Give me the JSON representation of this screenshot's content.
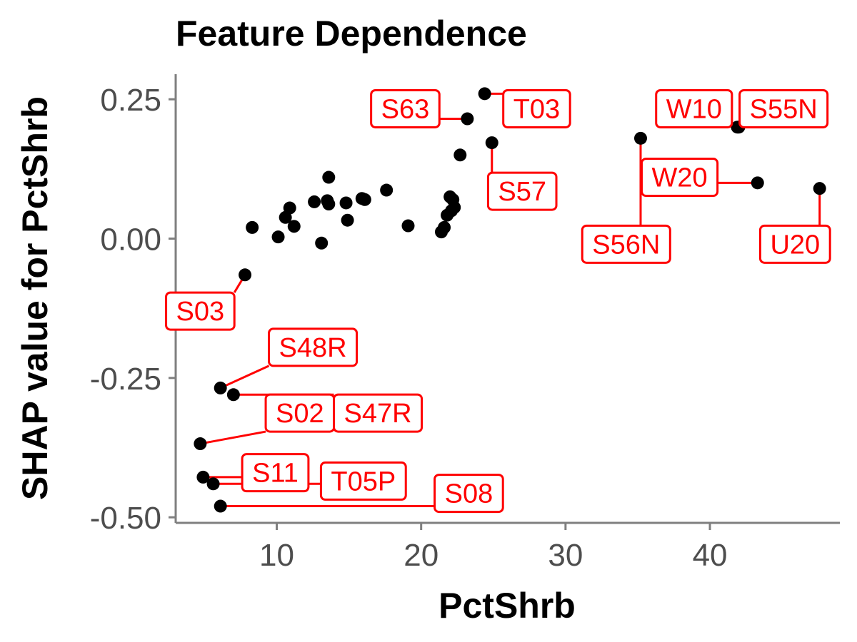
{
  "chart_data": {
    "type": "scatter",
    "title": "Feature Dependence",
    "xlabel": "PctShrb",
    "ylabel": "SHAP value for PctShrb",
    "xlim": [
      3,
      49
    ],
    "ylim": [
      -0.51,
      0.295
    ],
    "xticks": [
      10,
      20,
      30,
      40
    ],
    "xtick_labels": [
      "10",
      "20",
      "30",
      "40"
    ],
    "yticks": [
      0.25,
      0,
      -0.25,
      -0.5
    ],
    "ytick_labels": [
      "0.25",
      "0.00",
      "-0.25",
      "-0.50"
    ],
    "grid": false,
    "legend": "none",
    "colors": {
      "points": "#000000",
      "labels": "#ff0000",
      "axis": "#7f7f7f"
    },
    "points": [
      {
        "x": 8.3,
        "y": 0.02
      },
      {
        "x": 10.1,
        "y": 0.003
      },
      {
        "x": 10.6,
        "y": 0.038
      },
      {
        "x": 10.9,
        "y": 0.055
      },
      {
        "x": 11.2,
        "y": 0.022
      },
      {
        "x": 12.6,
        "y": 0.066
      },
      {
        "x": 13.1,
        "y": -0.008
      },
      {
        "x": 13.5,
        "y": 0.068
      },
      {
        "x": 13.6,
        "y": 0.11
      },
      {
        "x": 13.6,
        "y": 0.062
      },
      {
        "x": 14.8,
        "y": 0.064
      },
      {
        "x": 14.9,
        "y": 0.033
      },
      {
        "x": 15.9,
        "y": 0.072
      },
      {
        "x": 16.1,
        "y": 0.07
      },
      {
        "x": 17.6,
        "y": 0.087
      },
      {
        "x": 19.1,
        "y": 0.023
      },
      {
        "x": 21.4,
        "y": 0.012
      },
      {
        "x": 21.6,
        "y": 0.02
      },
      {
        "x": 21.8,
        "y": 0.042
      },
      {
        "x": 22.0,
        "y": 0.075
      },
      {
        "x": 22.1,
        "y": 0.05
      },
      {
        "x": 22.2,
        "y": 0.07
      },
      {
        "x": 22.3,
        "y": 0.056
      },
      {
        "x": 22.7,
        "y": 0.15
      },
      {
        "x": 23.2,
        "y": 0.215,
        "label": "S63"
      },
      {
        "x": 24.4,
        "y": 0.26,
        "label": "T03"
      },
      {
        "x": 24.9,
        "y": 0.172,
        "label": "S57"
      },
      {
        "x": 35.2,
        "y": 0.18,
        "label": "S56N"
      },
      {
        "x": 41.9,
        "y": 0.2,
        "label": "W10"
      },
      {
        "x": 42.0,
        "y": 0.2,
        "label": "S55N"
      },
      {
        "x": 43.3,
        "y": 0.1,
        "label": "W20"
      },
      {
        "x": 47.6,
        "y": 0.09,
        "label": "U20"
      },
      {
        "x": 7.8,
        "y": -0.065,
        "label": "S03"
      },
      {
        "x": 6.1,
        "y": -0.268,
        "label": "S48R"
      },
      {
        "x": 7.0,
        "y": -0.28,
        "label": "S47R"
      },
      {
        "x": 4.7,
        "y": -0.368,
        "label": "S02"
      },
      {
        "x": 4.9,
        "y": -0.428,
        "label": "S11"
      },
      {
        "x": 5.6,
        "y": -0.44,
        "label": "T05P"
      },
      {
        "x": 6.1,
        "y": -0.48,
        "label": "S08"
      }
    ],
    "annotations": [
      {
        "text": "S63",
        "x": 18.9,
        "y": 0.233
      },
      {
        "text": "T03",
        "x": 28.0,
        "y": 0.233
      },
      {
        "text": "S57",
        "x": 27.0,
        "y": 0.085
      },
      {
        "text": "S56N",
        "x": 34.2,
        "y": -0.01
      },
      {
        "text": "W10",
        "x": 38.9,
        "y": 0.233
      },
      {
        "text": "S55N",
        "x": 45.1,
        "y": 0.233
      },
      {
        "text": "W20",
        "x": 37.9,
        "y": 0.11
      },
      {
        "text": "U20",
        "x": 45.9,
        "y": -0.01
      },
      {
        "text": "S03",
        "x": 4.7,
        "y": -0.13
      },
      {
        "text": "S48R",
        "x": 12.5,
        "y": -0.195
      },
      {
        "text": "S02",
        "x": 11.6,
        "y": -0.313
      },
      {
        "text": "S47R",
        "x": 17.0,
        "y": -0.313
      },
      {
        "text": "S11",
        "x": 9.9,
        "y": -0.42
      },
      {
        "text": "T05P",
        "x": 16.0,
        "y": -0.435
      },
      {
        "text": "S08",
        "x": 23.3,
        "y": -0.457
      }
    ]
  }
}
